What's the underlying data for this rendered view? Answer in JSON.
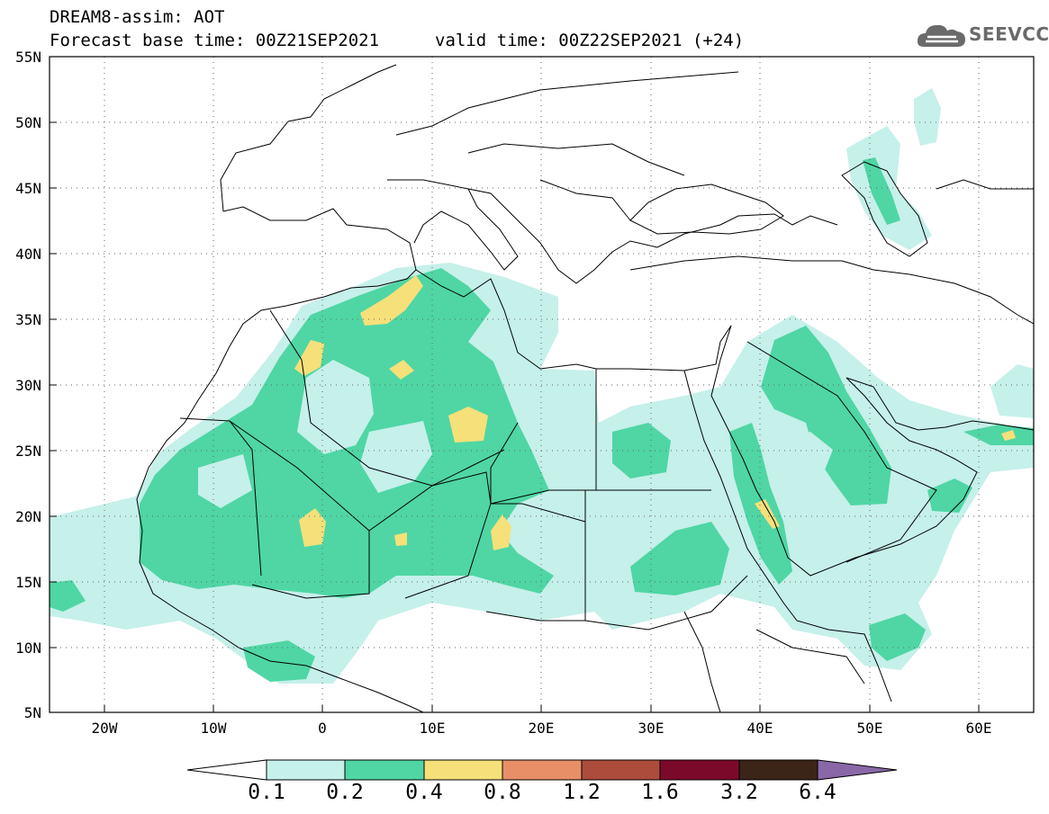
{
  "header": {
    "title_line1": "DREAM8-assim: AOT",
    "base_time": "Forecast base time: 00Z21SEP2021",
    "valid_time": "valid time: 00Z22SEP2021 (+24)"
  },
  "logo": {
    "text": "SEEVCCC",
    "icon": "cloud-logo-icon"
  },
  "map": {
    "lon_range": [
      -25,
      65
    ],
    "lat_range": [
      5,
      55
    ],
    "grid": "dotted",
    "lat_labels": [
      "55N",
      "50N",
      "45N",
      "40N",
      "35N",
      "30N",
      "25N",
      "20N",
      "15N",
      "10N",
      "5N"
    ],
    "lon_labels": [
      "20W",
      "10W",
      "0",
      "10E",
      "20E",
      "30E",
      "40E",
      "50E",
      "60E"
    ]
  },
  "colorbar": {
    "levels": [
      "0.1",
      "0.2",
      "0.4",
      "0.8",
      "1.2",
      "1.6",
      "3.2",
      "6.4"
    ],
    "colors": [
      "#ffffff",
      "#c6f0ea",
      "#4fd6a4",
      "#f5e07a",
      "#e88f68",
      "#ac4c3d",
      "#7b0a2a",
      "#3b2518",
      "#8a68a8"
    ]
  },
  "colors": {
    "aot_0_1": "#c6f0ea",
    "aot_0_2": "#4fd6a4",
    "aot_0_4": "#f5e07a"
  }
}
